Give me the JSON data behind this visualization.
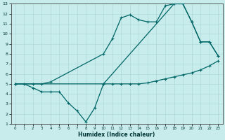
{
  "xlabel": "Humidex (Indice chaleur)",
  "bg_color": "#c8ecec",
  "grid_color": "#b0d8d8",
  "line_color": "#006666",
  "xlim": [
    -0.5,
    23.5
  ],
  "ylim": [
    1,
    13
  ],
  "xticks": [
    0,
    1,
    2,
    3,
    4,
    5,
    6,
    7,
    8,
    9,
    10,
    11,
    12,
    13,
    14,
    15,
    16,
    17,
    18,
    19,
    20,
    21,
    22,
    23
  ],
  "yticks": [
    1,
    2,
    3,
    4,
    5,
    6,
    7,
    8,
    9,
    10,
    11,
    12,
    13
  ],
  "line1_x": [
    0,
    1,
    2,
    3,
    4,
    5,
    6,
    7,
    8,
    9,
    10,
    11,
    12,
    13,
    14,
    15,
    16,
    17,
    18,
    19,
    20,
    21,
    22,
    23
  ],
  "line1_y": [
    5.0,
    5.0,
    4.6,
    4.2,
    4.2,
    4.2,
    3.1,
    2.3,
    1.2,
    2.6,
    5.0,
    5.0,
    5.0,
    5.0,
    5.0,
    5.1,
    5.3,
    5.5,
    5.7,
    5.9,
    6.1,
    6.4,
    6.8,
    7.3
  ],
  "line2_x": [
    0,
    2,
    3,
    4,
    10,
    11,
    12,
    13,
    14,
    15,
    16,
    17,
    18,
    19,
    20,
    21,
    22,
    23
  ],
  "line2_y": [
    5.0,
    5.0,
    5.0,
    5.2,
    8.0,
    9.5,
    11.6,
    11.9,
    11.4,
    11.2,
    11.2,
    12.8,
    13.0,
    13.0,
    11.2,
    9.2,
    9.2,
    7.8
  ],
  "line3_x": [
    0,
    10,
    18,
    19,
    20,
    21,
    22,
    23
  ],
  "line3_y": [
    5.0,
    5.0,
    13.0,
    13.0,
    11.2,
    9.2,
    9.2,
    7.8
  ]
}
